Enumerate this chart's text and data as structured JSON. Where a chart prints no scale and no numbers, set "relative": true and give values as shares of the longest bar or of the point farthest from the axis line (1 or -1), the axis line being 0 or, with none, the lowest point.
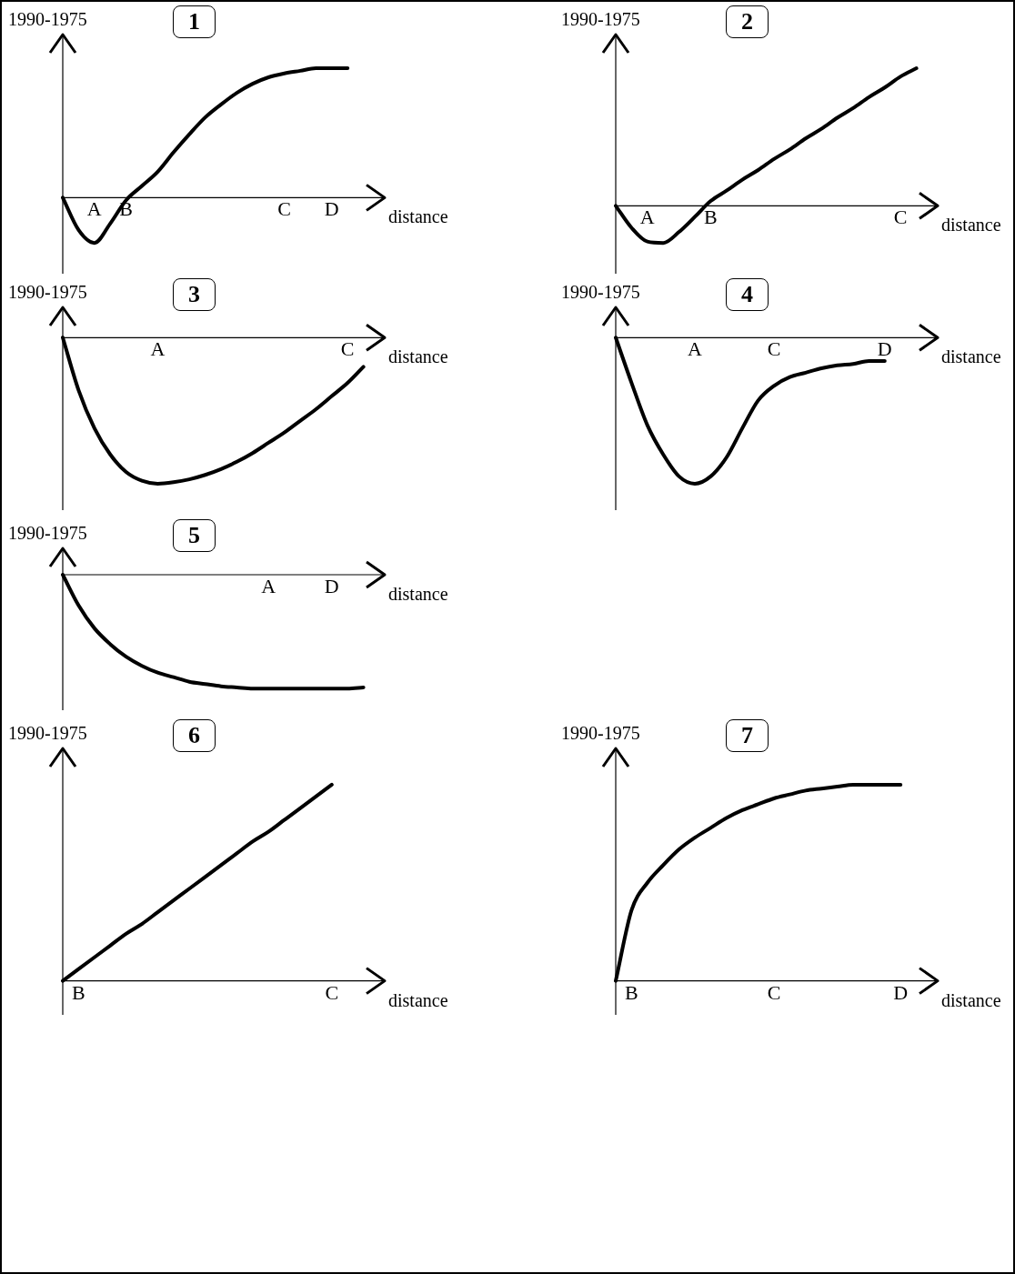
{
  "chart_data": [
    {
      "type": "line",
      "title": "1",
      "xlabel": "distance",
      "ylabel": "1990-1975",
      "relative": true,
      "color": "#000000",
      "categories": [
        null,
        null,
        "A",
        null,
        "B",
        null,
        null,
        null,
        null,
        null,
        null,
        null,
        null,
        null,
        "C",
        null,
        null,
        "D",
        null,
        null,
        null
      ],
      "values": [
        0,
        -0.25,
        -0.35,
        -0.2,
        -0.02,
        0.09,
        0.2,
        0.35,
        0.49,
        0.62,
        0.72,
        0.81,
        0.88,
        0.93,
        0.96,
        0.98,
        1,
        1,
        1,
        null,
        null
      ]
    },
    {
      "type": "line",
      "title": "2",
      "xlabel": "distance",
      "ylabel": "1990-1975",
      "relative": true,
      "color": "#000000",
      "categories": [
        null,
        null,
        "A",
        null,
        null,
        null,
        "B",
        null,
        null,
        null,
        null,
        null,
        null,
        null,
        null,
        null,
        null,
        null,
        "C",
        null,
        null
      ],
      "values": [
        0,
        -0.16,
        -0.26,
        -0.27,
        -0.19,
        -0.08,
        0.035,
        0.11,
        0.19,
        0.26,
        0.34,
        0.41,
        0.49,
        0.56,
        0.64,
        0.71,
        0.79,
        0.86,
        0.94,
        1,
        null
      ]
    },
    {
      "type": "line",
      "title": "3",
      "xlabel": "distance",
      "ylabel": "1990-1975",
      "relative": true,
      "color": "#000000",
      "categories": [
        null,
        null,
        null,
        null,
        null,
        null,
        "A",
        null,
        null,
        null,
        null,
        null,
        null,
        null,
        null,
        null,
        null,
        null,
        "C",
        null,
        null
      ],
      "values": [
        0,
        -0.36,
        -0.62,
        -0.8,
        -0.92,
        -0.98,
        -1,
        -0.99,
        -0.97,
        -0.94,
        -0.9,
        -0.85,
        -0.79,
        -0.72,
        -0.65,
        -0.57,
        -0.49,
        -0.4,
        -0.31,
        -0.2,
        null
      ]
    },
    {
      "type": "line",
      "title": "4",
      "xlabel": "distance",
      "ylabel": "1990-1975",
      "relative": true,
      "color": "#000000",
      "categories": [
        null,
        null,
        null,
        null,
        null,
        "A",
        null,
        null,
        null,
        null,
        "C",
        null,
        null,
        null,
        null,
        null,
        null,
        "D",
        null,
        null,
        null
      ],
      "values": [
        0,
        -0.31,
        -0.6,
        -0.8,
        -0.95,
        -1,
        -0.95,
        -0.82,
        -0.62,
        -0.43,
        -0.33,
        -0.27,
        -0.24,
        -0.21,
        -0.19,
        -0.18,
        -0.16,
        -0.16,
        null,
        null,
        null
      ]
    },
    {
      "type": "line",
      "title": "5",
      "xlabel": "distance",
      "ylabel": "1990-1975",
      "relative": true,
      "color": "#000000",
      "categories": [
        null,
        null,
        null,
        null,
        null,
        null,
        null,
        null,
        null,
        null,
        null,
        null,
        null,
        "A",
        null,
        null,
        null,
        "D",
        null,
        null,
        null
      ],
      "values": [
        0,
        -0.27,
        -0.47,
        -0.61,
        -0.72,
        -0.8,
        -0.86,
        -0.9,
        -0.94,
        -0.96,
        -0.98,
        -0.99,
        -1,
        -1,
        -1,
        -1,
        -1,
        -1,
        -1,
        -0.99,
        null
      ]
    },
    {
      "type": "line",
      "title": "6",
      "xlabel": "distance",
      "ylabel": "1990-1975",
      "relative": true,
      "color": "#000000",
      "categories": [
        null,
        "B",
        null,
        null,
        null,
        null,
        null,
        null,
        null,
        null,
        null,
        null,
        null,
        null,
        null,
        null,
        null,
        "C",
        null,
        null,
        null
      ],
      "values": [
        0,
        0.06,
        0.12,
        0.18,
        0.24,
        0.29,
        0.35,
        0.41,
        0.47,
        0.53,
        0.59,
        0.65,
        0.71,
        0.76,
        0.82,
        0.88,
        0.94,
        1,
        null,
        null,
        null
      ]
    },
    {
      "type": "line",
      "title": "7",
      "xlabel": "distance",
      "ylabel": "1990-1975",
      "relative": true,
      "color": "#000000",
      "categories": [
        null,
        "B",
        null,
        null,
        null,
        null,
        null,
        null,
        null,
        null,
        "C",
        null,
        null,
        null,
        null,
        null,
        null,
        null,
        "D",
        null,
        null
      ],
      "values": [
        0,
        0.36,
        0.5,
        0.59,
        0.67,
        0.73,
        0.78,
        0.83,
        0.87,
        0.9,
        0.93,
        0.95,
        0.97,
        0.98,
        0.99,
        1,
        1,
        1,
        1,
        null,
        null
      ]
    }
  ]
}
